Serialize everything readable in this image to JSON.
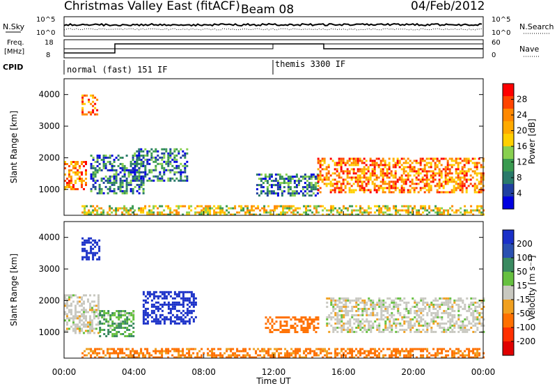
{
  "header": {
    "station": "Christmas Valley East (fitACF)",
    "beam": "Beam 08",
    "date": "04/Feb/2012"
  },
  "params": {
    "nsky_label": "N.Sky",
    "nsearch_label": "N.Search",
    "noise_ticks": [
      "10^5",
      "10^0"
    ],
    "freq_label": "Freq.",
    "freq_unit": "[MHz]",
    "freq_ticks": [
      "18",
      "8"
    ],
    "nave_label": "Nave",
    "nave_ticks": [
      "60",
      "0"
    ],
    "cpid_label": "CPID",
    "cpid_segments": [
      {
        "label": "normal (fast) 151 IF",
        "start_hour": 0
      },
      {
        "label": "themis 3300 IF",
        "start_hour": 12
      }
    ]
  },
  "colorbars": {
    "power": {
      "label": "Power [dB]",
      "ticks": [
        "28",
        "24",
        "20",
        "16",
        "12",
        "8",
        "4"
      ],
      "colors": [
        "#ff0000",
        "#ff4400",
        "#ff8800",
        "#ffaa00",
        "#ffd000",
        "#88d050",
        "#3a9a50",
        "#2a7a6a",
        "#2040a0",
        "#0000e0"
      ]
    },
    "velocity": {
      "label": "Velocity [m s⁻¹]",
      "ticks": [
        "200",
        "100",
        "50",
        "15",
        "-15",
        "-50",
        "-100",
        "-200"
      ],
      "colors": [
        "#1a30c8",
        "#2a50b0",
        "#3a8a60",
        "#66c040",
        "#c8c8c0",
        "#f0a020",
        "#ff7000",
        "#ff3000",
        "#e00000"
      ]
    }
  },
  "chart_data": [
    {
      "type": "heatmap",
      "title": "Power",
      "xlabel": "Time UT",
      "ylabel": "Slant Range [km]",
      "xlim": [
        0,
        24
      ],
      "ylim": [
        180,
        4500
      ],
      "x_ticks": [
        "00:00",
        "04:00",
        "08:00",
        "12:00",
        "16:00",
        "20:00",
        "00:00"
      ],
      "y_ticks": [
        1000,
        2000,
        3000,
        4000
      ],
      "regions": [
        {
          "t0": 0.0,
          "t1": 1.3,
          "r0": 1000,
          "r1": 1900,
          "level": "high"
        },
        {
          "t0": 1.0,
          "t1": 1.9,
          "r0": 3400,
          "r1": 4000,
          "level": "high"
        },
        {
          "t0": 1.5,
          "t1": 4.5,
          "r0": 900,
          "r1": 2100,
          "level": "low"
        },
        {
          "t0": 4.0,
          "t1": 7.0,
          "r0": 1300,
          "r1": 2300,
          "level": "low"
        },
        {
          "t0": 11.0,
          "t1": 14.5,
          "r0": 800,
          "r1": 1500,
          "level": "low"
        },
        {
          "t0": 14.5,
          "t1": 24.0,
          "r0": 900,
          "r1": 2000,
          "level": "high"
        },
        {
          "t0": 1.0,
          "t1": 24.0,
          "r0": 200,
          "r1": 500,
          "level": "mid"
        }
      ]
    },
    {
      "type": "heatmap",
      "title": "Velocity",
      "xlabel": "Time UT",
      "ylabel": "Slant Range [km]",
      "xlim": [
        0,
        24
      ],
      "ylim": [
        180,
        4500
      ],
      "x_ticks": [
        "00:00",
        "04:00",
        "08:00",
        "12:00",
        "16:00",
        "20:00",
        "00:00"
      ],
      "y_ticks": [
        1000,
        2000,
        3000,
        4000
      ],
      "regions": [
        {
          "t0": 0.0,
          "t1": 2.0,
          "r0": 1000,
          "r1": 2200,
          "vel": 0
        },
        {
          "t0": 1.0,
          "t1": 2.0,
          "r0": 3300,
          "r1": 4000,
          "vel": 200
        },
        {
          "t0": 2.0,
          "t1": 4.0,
          "r0": 900,
          "r1": 1700,
          "vel": 30
        },
        {
          "t0": 4.5,
          "t1": 7.5,
          "r0": 1300,
          "r1": 2300,
          "vel": 200
        },
        {
          "t0": 11.5,
          "t1": 14.5,
          "r0": 1000,
          "r1": 1500,
          "vel": -70
        },
        {
          "t0": 15.0,
          "t1": 24.0,
          "r0": 1000,
          "r1": 2100,
          "vel": 0
        },
        {
          "t0": 1.0,
          "t1": 24.0,
          "r0": 200,
          "r1": 500,
          "vel": -60
        }
      ]
    }
  ]
}
